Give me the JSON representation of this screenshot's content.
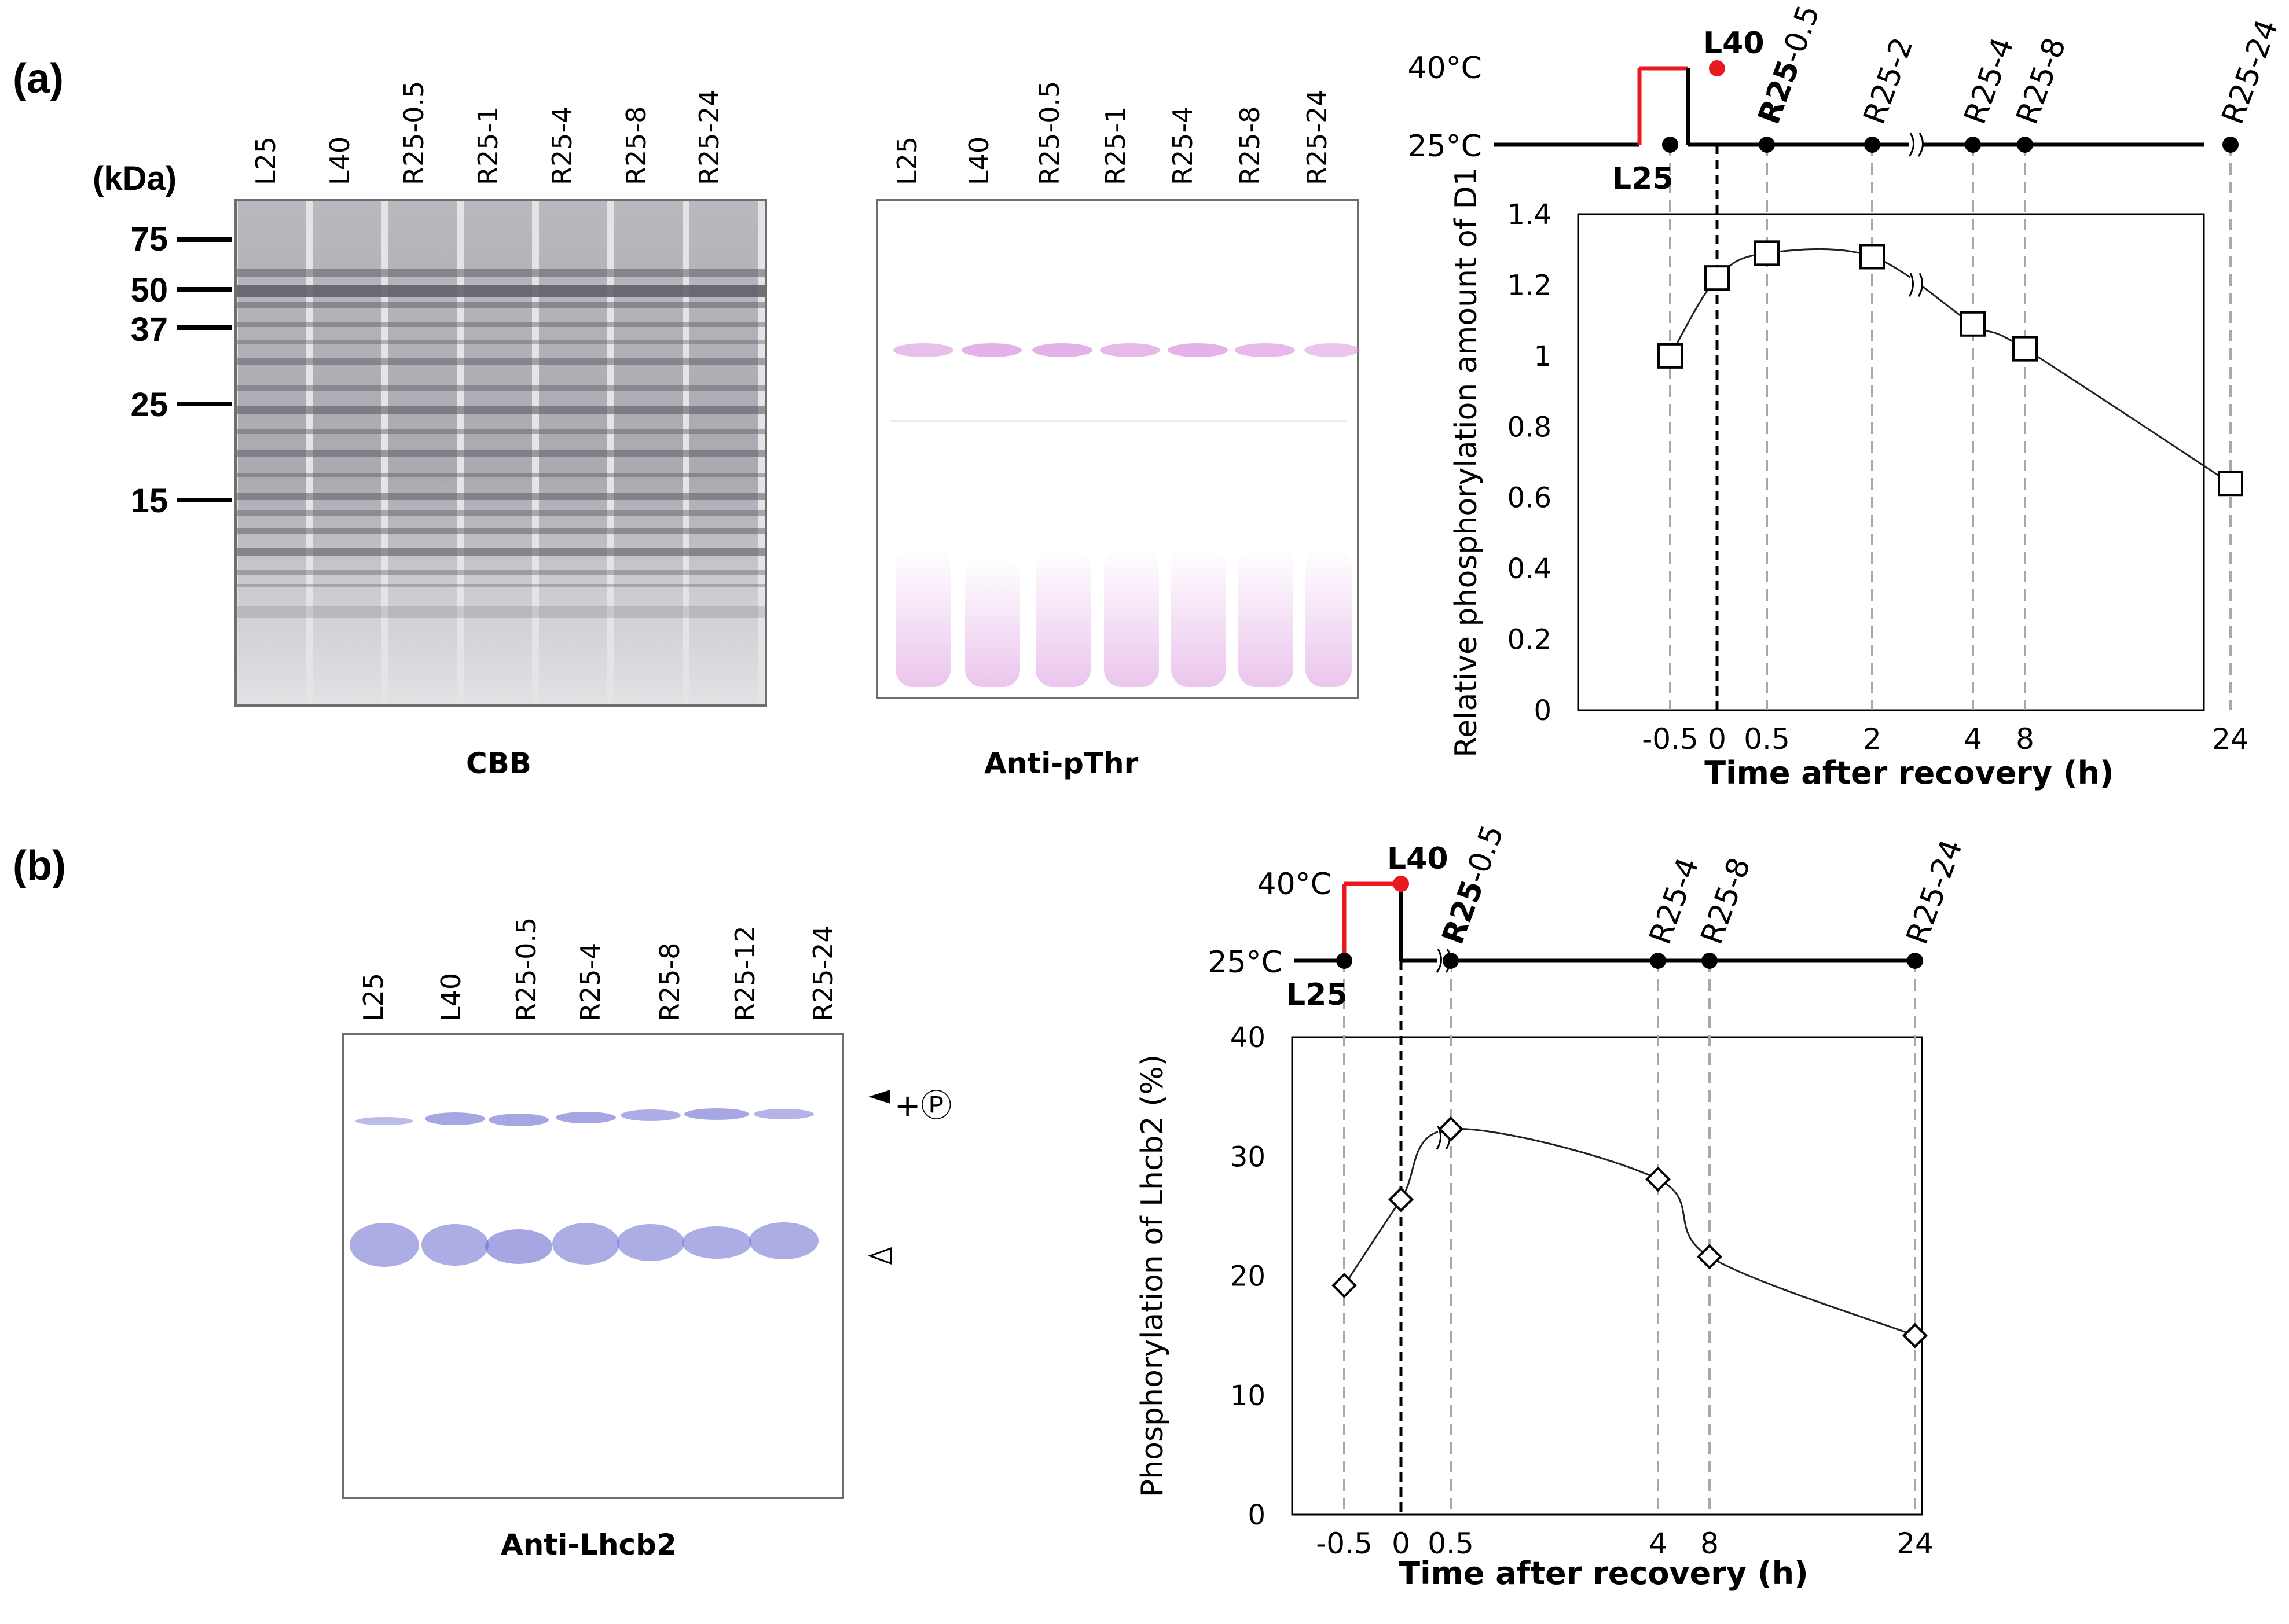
{
  "panel_a": {
    "label": "(a)",
    "kda_label": "(kDa)",
    "markers": [
      "75",
      "50",
      "37",
      "25",
      "15"
    ],
    "cbb": {
      "lanes": [
        "L25",
        "L40",
        "R25-0.5",
        "R25-1",
        "R25-4",
        "R25-8",
        "R25-24"
      ],
      "caption": "CBB"
    },
    "pthr": {
      "lanes": [
        "L25",
        "L40",
        "R25-0.5",
        "R25-1",
        "R25-4",
        "R25-8",
        "R25-24"
      ],
      "caption": "Anti-pThr"
    }
  },
  "panel_b": {
    "label": "(b)",
    "lhcb2": {
      "lanes": [
        "L25",
        "L40",
        "R25-0.5",
        "R25-4",
        "R25-8",
        "R25-12",
        "R25-24"
      ],
      "caption": "Anti-Lhcb2",
      "phospho_marker": "+Ⓟ"
    }
  },
  "chart_data": [
    {
      "type": "line",
      "ylabel": "Relative phosphorylation amount of D1",
      "xlabel": "Time after recovery (h)",
      "x_tick_labels": [
        "-0.5",
        "0",
        "0.5",
        "2",
        "4",
        "8",
        "24"
      ],
      "ylim": [
        0,
        1.4
      ],
      "y_ticks": [
        "0",
        "0.2",
        "0.4",
        "0.6",
        "0.8",
        "1",
        "1.2",
        "1.4"
      ],
      "marker": "square",
      "series": [
        {
          "x": [
            "-0.5",
            "0",
            "0.5",
            "2",
            "4",
            "8",
            "24"
          ],
          "values": [
            1.0,
            1.22,
            1.29,
            1.28,
            1.09,
            1.02,
            0.64
          ]
        }
      ],
      "timeline": {
        "temps": [
          "40°C",
          "25°C"
        ],
        "points": [
          "L25",
          "L40",
          "R25-0.5",
          "R25-2",
          "R25-4",
          "R25-8",
          "R25-24"
        ],
        "bold_prefix": "R25",
        "heat_color": "#e8191f"
      }
    },
    {
      "type": "line",
      "ylabel": "Phosphorylation of Lhcb2 (%)",
      "xlabel": "Time after recovery (h)",
      "x_tick_labels": [
        "-0.5",
        "0",
        "0.5",
        "4",
        "8",
        "24"
      ],
      "ylim": [
        0,
        40
      ],
      "y_ticks": [
        "0",
        "10",
        "20",
        "30",
        "40"
      ],
      "marker": "diamond",
      "series": [
        {
          "x": [
            "-0.5",
            "0",
            "0.5",
            "4",
            "8",
            "24"
          ],
          "values": [
            19.2,
            26.4,
            32.3,
            28.1,
            21.6,
            15.0
          ]
        }
      ],
      "timeline": {
        "temps": [
          "40°C",
          "25°C"
        ],
        "points": [
          "L25",
          "L40",
          "R25-0.5",
          "R25-4",
          "R25-8",
          "R25-24"
        ],
        "bold_prefix": "R25",
        "heat_color": "#e8191f"
      }
    }
  ],
  "colors": {
    "cbb_stain": "#7a7a80",
    "pthr_stain": "#d27fd8",
    "lhcb2_stain": "#6a6ad0",
    "guide_line": "#a8a8a8"
  }
}
